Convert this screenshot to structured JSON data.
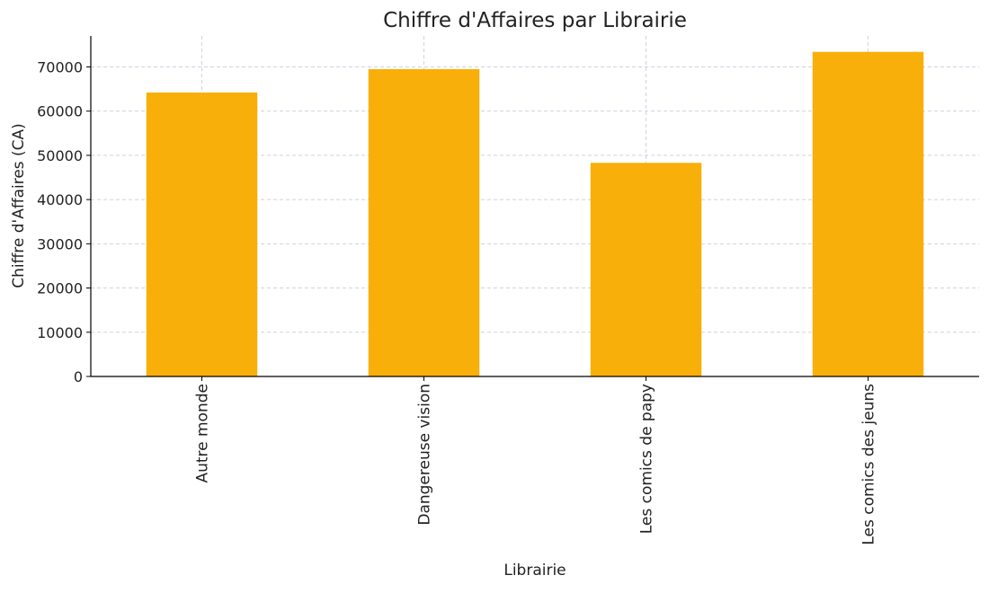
{
  "chart_data": {
    "type": "bar",
    "title": "Chiffre d'Affaires par Librairie",
    "xlabel": "Librairie",
    "ylabel": "Chiffre d'Affaires (CA)",
    "categories": [
      "Autre monde",
      "Dangereuse vision",
      "Les comics de papy",
      "Les comics des jeuns"
    ],
    "values": [
      64200,
      69500,
      48300,
      73400
    ],
    "ylim": [
      0,
      77000
    ],
    "yticks": [
      0,
      10000,
      20000,
      30000,
      40000,
      50000,
      60000,
      70000
    ],
    "ytick_labels": [
      "0",
      "10000",
      "20000",
      "30000",
      "40000",
      "50000",
      "60000",
      "70000"
    ],
    "grid": true,
    "bar_color": "#F8AF0A",
    "grid_color": "#D9CCE0",
    "axis_color": "#000000"
  }
}
